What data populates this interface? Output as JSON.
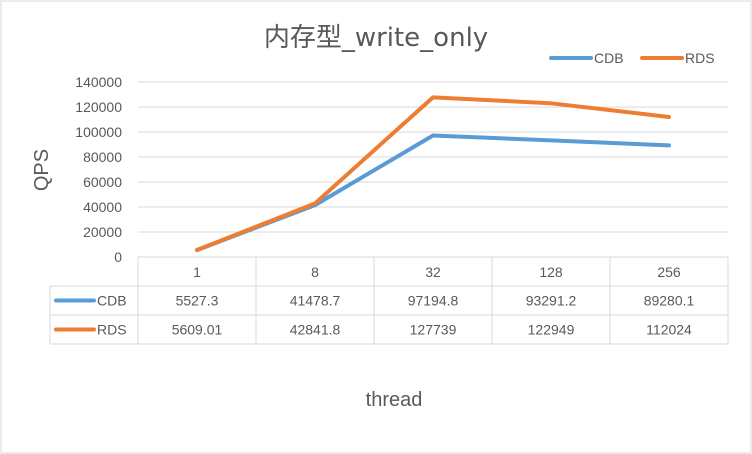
{
  "chart_data": {
    "type": "line",
    "title": "内存型_write_only",
    "xlabel": "thread",
    "ylabel": "QPS",
    "categories": [
      "1",
      "8",
      "32",
      "128",
      "256"
    ],
    "ylim": [
      0,
      140000
    ],
    "yticks": [
      0,
      20000,
      40000,
      60000,
      80000,
      100000,
      120000,
      140000
    ],
    "ytick_labels": [
      "0",
      "20000",
      "40000",
      "60000",
      "80000",
      "100000",
      "120000",
      "140000"
    ],
    "grid": true,
    "legend_position": "top-right",
    "data_table": true,
    "series": [
      {
        "name": "CDB",
        "color": "#5B9BD5",
        "values": [
          5527.3,
          41478.7,
          97194.8,
          93291.2,
          89280.1
        ],
        "labels": [
          "5527.3",
          "41478.7",
          "97194.8",
          "93291.2",
          "89280.1"
        ]
      },
      {
        "name": "RDS",
        "color": "#ED7D31",
        "values": [
          5609.01,
          42841.8,
          127739,
          122949,
          112024
        ],
        "labels": [
          "5609.01",
          "42841.8",
          "127739",
          "122949",
          "112024"
        ]
      }
    ]
  }
}
